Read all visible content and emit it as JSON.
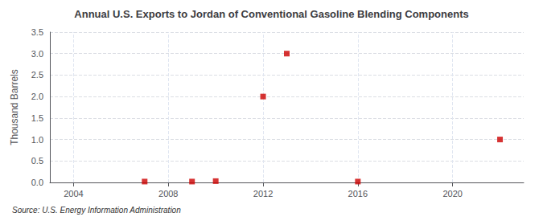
{
  "chart_data": {
    "type": "scatter",
    "title": "Annual U.S. Exports to Jordan of Conventional Gasoline Blending Components",
    "ylabel": "Thousand Barrels",
    "annotations": [
      "Source: U.S. Energy Information Administration"
    ],
    "x": [
      2007,
      2009,
      2010,
      2012,
      2013,
      2016,
      2022
    ],
    "values": [
      0.02,
      0.02,
      0.03,
      2.0,
      3.0,
      0.02,
      1.0
    ],
    "color": "#cc0000",
    "marker": "square",
    "xlim": [
      2003,
      2023
    ],
    "xticks": [
      2004,
      2008,
      2012,
      2016,
      2020
    ],
    "ylim": [
      0,
      3.5
    ],
    "yticks": [
      {
        "value": 0.0,
        "label": "0.0"
      },
      0.5,
      {
        "value": 1.0,
        "label": "1.0"
      },
      1.5,
      {
        "value": 2.0,
        "label": "2.0"
      },
      2.5,
      {
        "value": 3.0,
        "label": "3.0"
      },
      3.5
    ],
    "grid": true
  }
}
